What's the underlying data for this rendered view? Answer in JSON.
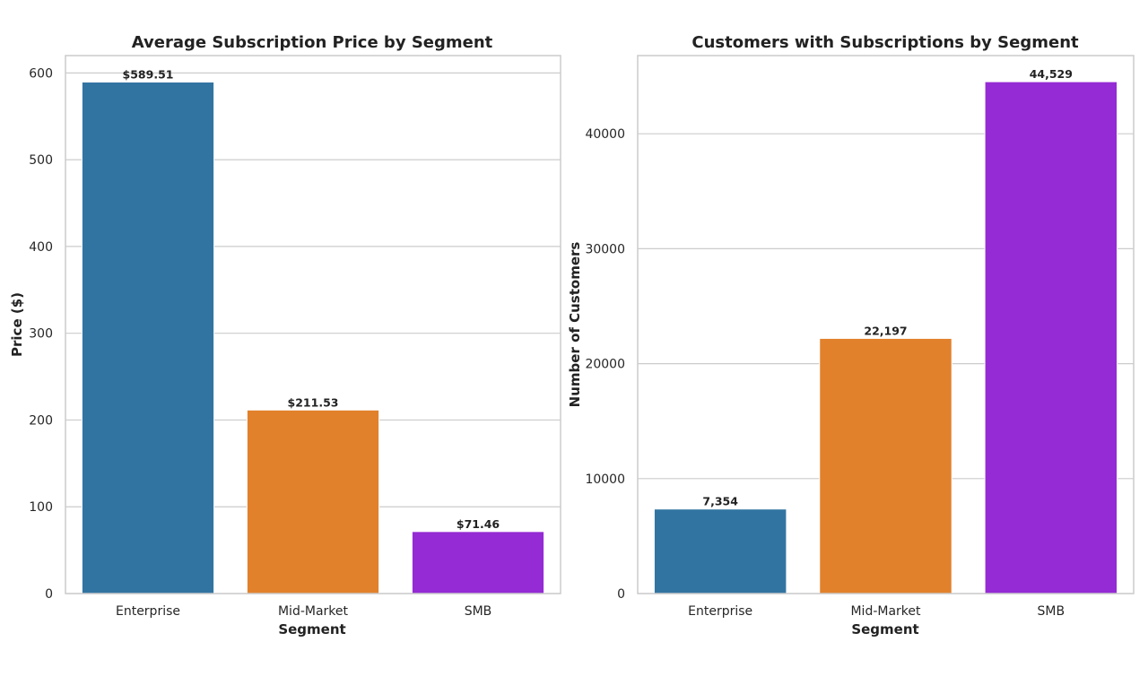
{
  "chart_data": [
    {
      "type": "bar",
      "title": "Average Subscription Price by Segment",
      "xlabel": "Segment",
      "ylabel": "Price ($)",
      "categories": [
        "Enterprise",
        "Mid-Market",
        "SMB"
      ],
      "values": [
        589.51,
        211.53,
        71.46
      ],
      "data_labels": [
        "$589.51",
        "$211.53",
        "$71.46"
      ],
      "colors": [
        "#3274a1",
        "#e1812c",
        "#952bd4"
      ],
      "ylim": [
        0,
        620
      ],
      "yticks": [
        0,
        100,
        200,
        300,
        400,
        500,
        600
      ],
      "ytick_labels": [
        "0",
        "100",
        "200",
        "300",
        "400",
        "500",
        "600"
      ],
      "grid": true
    },
    {
      "type": "bar",
      "title": "Customers with Subscriptions by Segment",
      "xlabel": "Segment",
      "ylabel": "Number of Customers",
      "categories": [
        "Enterprise",
        "Mid-Market",
        "SMB"
      ],
      "values": [
        7354,
        22197,
        44529
      ],
      "data_labels": [
        "7,354",
        "22,197",
        "44,529"
      ],
      "colors": [
        "#3274a1",
        "#e1812c",
        "#952bd4"
      ],
      "ylim": [
        0,
        46800
      ],
      "yticks": [
        0,
        10000,
        20000,
        30000,
        40000
      ],
      "ytick_labels": [
        "0",
        "10000",
        "20000",
        "30000",
        "40000"
      ],
      "grid": true
    }
  ]
}
